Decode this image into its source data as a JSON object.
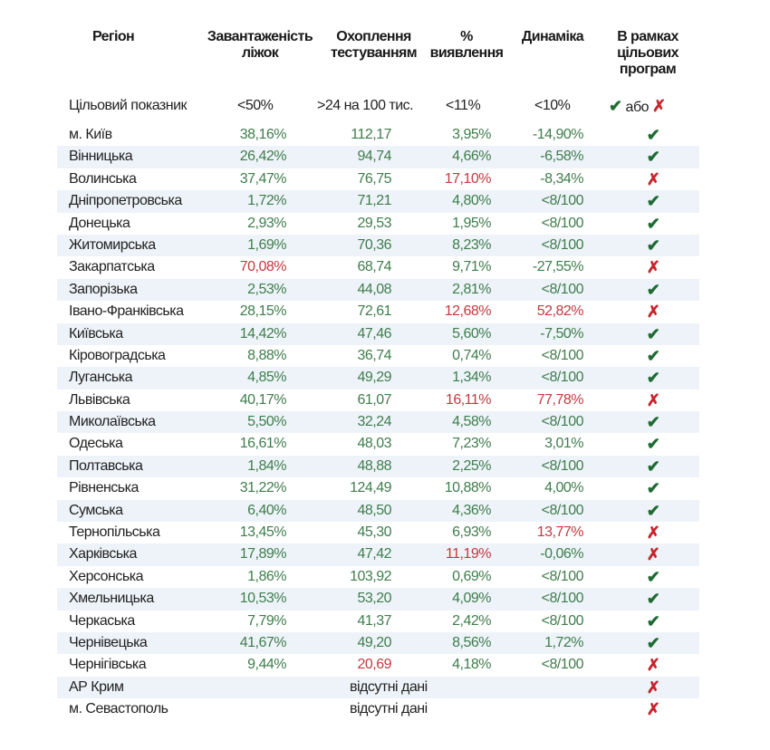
{
  "header": {
    "region": "Регіон",
    "beds": "Завантаженість ліжок",
    "testing": "Охоплення тестуванням",
    "detection": "% виявлення",
    "dynamics": "Динаміка",
    "programs": "В рамках цільових програм"
  },
  "target": {
    "label": "Цільовий показник",
    "beds": "<50%",
    "testing": ">24 на 100 тис.",
    "detection": "<11%",
    "dynamics": "<10%",
    "check": "✔",
    "or": "або",
    "cross": "✗"
  },
  "colors": {
    "ok": "#3f7d4c",
    "bad": "#c23a40",
    "check": "#1f6b33",
    "cross": "#c8242c",
    "stripe": "#eef3f9"
  },
  "rows": [
    {
      "region": "м. Київ",
      "beds": "38,16%",
      "testing": "112,17",
      "detection": "3,95%",
      "dynamics": "-14,90%",
      "bad": [],
      "pass": true
    },
    {
      "region": "Вінницька",
      "beds": "26,42%",
      "testing": "94,74",
      "detection": "4,66%",
      "dynamics": "-6,58%",
      "bad": [],
      "pass": true
    },
    {
      "region": "Волинська",
      "beds": "37,47%",
      "testing": "76,75",
      "detection": "17,10%",
      "dynamics": "-8,34%",
      "bad": [
        "detection"
      ],
      "pass": false
    },
    {
      "region": "Дніпропетровська",
      "beds": "1,72%",
      "testing": "71,21",
      "detection": "4,80%",
      "dynamics": "<8/100",
      "bad": [],
      "pass": true
    },
    {
      "region": "Донецька",
      "beds": "2,93%",
      "testing": "29,53",
      "detection": "1,95%",
      "dynamics": "<8/100",
      "bad": [],
      "pass": true
    },
    {
      "region": "Житомирська",
      "beds": "1,69%",
      "testing": "70,36",
      "detection": "8,23%",
      "dynamics": "<8/100",
      "bad": [],
      "pass": true
    },
    {
      "region": "Закарпатська",
      "beds": "70,08%",
      "testing": "68,74",
      "detection": "9,71%",
      "dynamics": "-27,55%",
      "bad": [
        "beds"
      ],
      "pass": false
    },
    {
      "region": "Запорізька",
      "beds": "2,53%",
      "testing": "44,08",
      "detection": "2,81%",
      "dynamics": "<8/100",
      "bad": [],
      "pass": true
    },
    {
      "region": "Івано-Франківська",
      "beds": "28,15%",
      "testing": "72,61",
      "detection": "12,68%",
      "dynamics": "52,82%",
      "bad": [
        "detection",
        "dynamics"
      ],
      "pass": false
    },
    {
      "region": "Київська",
      "beds": "14,42%",
      "testing": "47,46",
      "detection": "5,60%",
      "dynamics": "-7,50%",
      "bad": [],
      "pass": true
    },
    {
      "region": "Кіровоградська",
      "beds": "8,88%",
      "testing": "36,74",
      "detection": "0,74%",
      "dynamics": "<8/100",
      "bad": [],
      "pass": true
    },
    {
      "region": "Луганська",
      "beds": "4,85%",
      "testing": "49,29",
      "detection": "1,34%",
      "dynamics": "<8/100",
      "bad": [],
      "pass": true
    },
    {
      "region": "Львівська",
      "beds": "40,17%",
      "testing": "61,07",
      "detection": "16,11%",
      "dynamics": "77,78%",
      "bad": [
        "detection",
        "dynamics"
      ],
      "pass": false
    },
    {
      "region": "Миколаївська",
      "beds": "5,50%",
      "testing": "32,24",
      "detection": "4,58%",
      "dynamics": "<8/100",
      "bad": [],
      "pass": true
    },
    {
      "region": "Одеська",
      "beds": "16,61%",
      "testing": "48,03",
      "detection": "7,23%",
      "dynamics": "3,01%",
      "bad": [],
      "pass": true
    },
    {
      "region": "Полтавська",
      "beds": "1,84%",
      "testing": "48,88",
      "detection": "2,25%",
      "dynamics": "<8/100",
      "bad": [],
      "pass": true
    },
    {
      "region": "Рівненська",
      "beds": "31,22%",
      "testing": "124,49",
      "detection": "10,88%",
      "dynamics": "4,00%",
      "bad": [],
      "pass": true
    },
    {
      "region": "Сумська",
      "beds": "6,40%",
      "testing": "48,50",
      "detection": "4,36%",
      "dynamics": "<8/100",
      "bad": [],
      "pass": true
    },
    {
      "region": "Тернопільська",
      "beds": "13,45%",
      "testing": "45,30",
      "detection": "6,93%",
      "dynamics": "13,77%",
      "bad": [
        "dynamics"
      ],
      "pass": false
    },
    {
      "region": "Харківська",
      "beds": "17,89%",
      "testing": "47,42",
      "detection": "11,19%",
      "dynamics": "-0,06%",
      "bad": [
        "detection"
      ],
      "pass": false
    },
    {
      "region": "Херсонська",
      "beds": "1,86%",
      "testing": "103,92",
      "detection": "0,69%",
      "dynamics": "<8/100",
      "bad": [],
      "pass": true
    },
    {
      "region": "Хмельницька",
      "beds": "10,53%",
      "testing": "53,20",
      "detection": "4,09%",
      "dynamics": "<8/100",
      "bad": [],
      "pass": true
    },
    {
      "region": "Черкаська",
      "beds": "7,79%",
      "testing": "41,37",
      "detection": "2,42%",
      "dynamics": "<8/100",
      "bad": [],
      "pass": true
    },
    {
      "region": "Чернівецька",
      "beds": "41,67%",
      "testing": "49,20",
      "detection": "8,56%",
      "dynamics": "1,72%",
      "bad": [],
      "pass": true
    },
    {
      "region": "Чернігівська",
      "beds": "9,44%",
      "testing": "20,69",
      "detection": "4,18%",
      "dynamics": "<8/100",
      "bad": [
        "testing"
      ],
      "pass": false
    },
    {
      "region": "АР Крим",
      "no_data": "відсутні дані",
      "pass": false
    },
    {
      "region": "м. Севастополь",
      "no_data": "відсутні дані",
      "pass": false
    }
  ]
}
